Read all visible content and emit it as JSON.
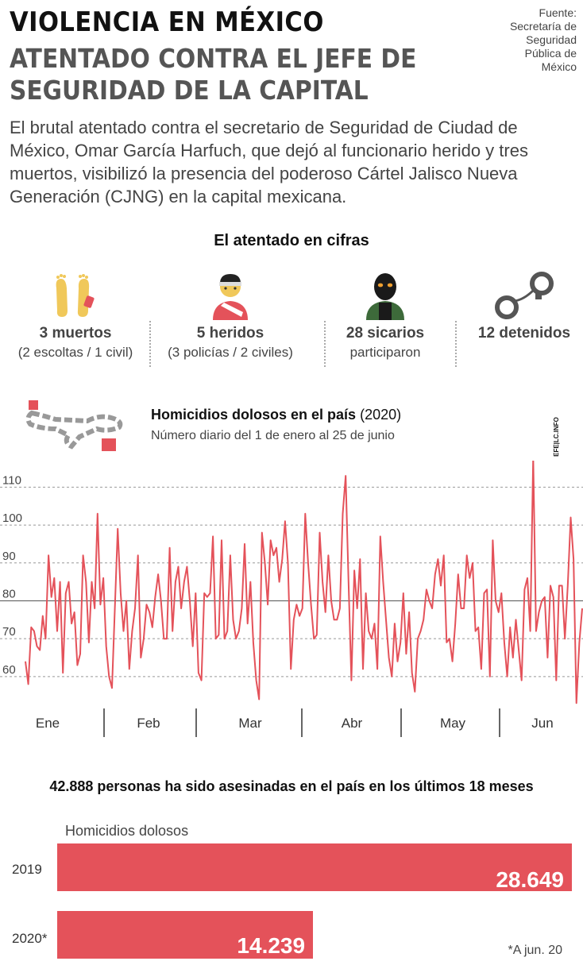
{
  "header": {
    "title1": "VIOLENCIA EN MÉXICO",
    "title2": "ATENTADO CONTRA EL JEFE DE SEGURIDAD DE LA CAPITAL",
    "source": "Fuente: Secretaría de Seguridad Pública de México"
  },
  "intro": "El brutal atentado contra el secretario de Seguridad de Ciudad de México, Omar García Harfuch, que dejó al funcionario herido y tres muertos, visibilizó la presencia del poderoso Cártel Jalisco Nueva Generación (CJNG) en la capital mexicana.",
  "cifras": {
    "title": "El atentado en cifras",
    "items": [
      {
        "big": "3 muertos",
        "small": "(2 escoltas / 1 civil)",
        "icon": "feet-tag-icon"
      },
      {
        "big": "5 heridos",
        "small": "(3 policías / 2 civiles)",
        "icon": "injured-person-icon"
      },
      {
        "big": "28 sicarios",
        "small": "participaron",
        "icon": "masked-hitman-icon"
      },
      {
        "big": "12 detenidos",
        "small": "",
        "icon": "handcuffs-icon"
      }
    ]
  },
  "colors": {
    "accent": "#e4525a",
    "text": "#444444",
    "dark": "#111111",
    "grid": "#999999"
  },
  "chart_data": [
    {
      "type": "line",
      "title": "Homicidios dolosos en el país",
      "title_suffix": "(2020)",
      "subtitle": "Número diario del 1 de enero al 25 de junio",
      "credit": "EFE|LC.INFOGRAFÍA",
      "months": [
        "Ene",
        "Feb",
        "Mar",
        "Abr",
        "May",
        "Jun"
      ],
      "yticks": [
        60,
        70,
        80,
        90,
        100,
        110
      ],
      "ylim": [
        52,
        117
      ],
      "reference_line": 80,
      "values": [
        64,
        58,
        73,
        72,
        68,
        67,
        76,
        70,
        92,
        81,
        86,
        72,
        85,
        61,
        82,
        85,
        74,
        77,
        63,
        66,
        92,
        85,
        69,
        85,
        78,
        103,
        79,
        86,
        68,
        60,
        57,
        78,
        99,
        82,
        72,
        80,
        62,
        72,
        78,
        92,
        65,
        70,
        79,
        77,
        73,
        81,
        87,
        80,
        70,
        70,
        94,
        72,
        85,
        89,
        78,
        85,
        89,
        80,
        68,
        82,
        61,
        59,
        82,
        81,
        82,
        97,
        70,
        71,
        96,
        70,
        72,
        92,
        75,
        70,
        72,
        78,
        95,
        74,
        85,
        69,
        59,
        54,
        98,
        90,
        79,
        96,
        92,
        94,
        85,
        91,
        101,
        90,
        62,
        75,
        79,
        76,
        78,
        103,
        90,
        79,
        70,
        71,
        98,
        85,
        77,
        92,
        80,
        75,
        75,
        78,
        103,
        113,
        85,
        59,
        88,
        78,
        91,
        62,
        82,
        72,
        70,
        74,
        62,
        97,
        85,
        75,
        65,
        60,
        74,
        64,
        69,
        82,
        66,
        77,
        61,
        56,
        70,
        72,
        75,
        83,
        80,
        78,
        87,
        91,
        84,
        92,
        69,
        70,
        64,
        74,
        87,
        78,
        78,
        92,
        86,
        90,
        72,
        73,
        62,
        82,
        83,
        60,
        96,
        80,
        77,
        82,
        69,
        60,
        73,
        65,
        75,
        67,
        59,
        83,
        86,
        72,
        118,
        72,
        77,
        80,
        81,
        65,
        84,
        81,
        59,
        84,
        84,
        70,
        84,
        102,
        91,
        53,
        69,
        78
      ]
    },
    {
      "type": "bar",
      "orientation": "horizontal",
      "title": "42.888 personas ha sido asesinadas en el país en los últimos 18 meses",
      "series_label": "Homicidios dolosos",
      "categories": [
        "2019",
        "2020*"
      ],
      "values": [
        28649,
        14239
      ],
      "value_labels": [
        "28.649",
        "14.239"
      ],
      "footnote": "*A jun. 20"
    }
  ]
}
